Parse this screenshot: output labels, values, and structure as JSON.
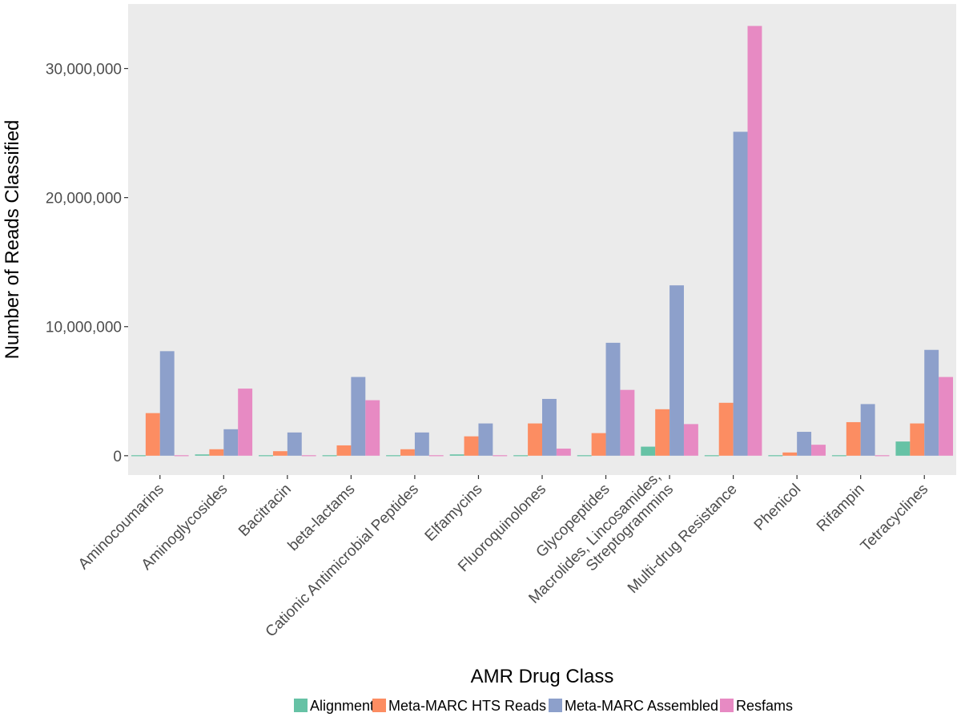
{
  "chart_data": {
    "type": "bar",
    "xlabel": "AMR Drug Class",
    "ylabel": "Number of Reads Classified",
    "ylim": [
      -1500000,
      35000000
    ],
    "yticks": [
      0,
      10000000,
      20000000,
      30000000
    ],
    "ytick_labels": [
      "0",
      "10,000,000",
      "20,000,000",
      "30,000,000"
    ],
    "categories": [
      [
        "Aminocoumarins"
      ],
      [
        "Aminoglycosides"
      ],
      [
        "Bacitracin"
      ],
      [
        "beta-lactams"
      ],
      [
        "Cationic Antimicrobial Peptides"
      ],
      [
        "Elfamycins"
      ],
      [
        "Fluoroquinolones"
      ],
      [
        "Glycopeptides"
      ],
      [
        "Macrolides, Lincosamides,",
        "Streptogrammins"
      ],
      [
        "Multi-drug Resistance"
      ],
      [
        "Phenicol"
      ],
      [
        "Rifampin"
      ],
      [
        "Tetracyclines"
      ]
    ],
    "series": [
      {
        "name": "Alignment",
        "color": "#66c2a5",
        "values": [
          20000,
          100000,
          0,
          20000,
          20000,
          100000,
          20000,
          0,
          700000,
          20000,
          20000,
          20000,
          1100000
        ]
      },
      {
        "name": "Meta-MARC HTS Reads",
        "color": "#fc8d62",
        "values": [
          3300000,
          500000,
          350000,
          800000,
          500000,
          1500000,
          2500000,
          1750000,
          3600000,
          4100000,
          250000,
          2600000,
          2500000
        ]
      },
      {
        "name": "Meta-MARC Assembled",
        "color": "#8da0cb",
        "values": [
          8100000,
          2050000,
          1800000,
          6100000,
          1800000,
          2500000,
          4400000,
          8750000,
          13200000,
          25100000,
          1850000,
          4000000,
          8200000
        ]
      },
      {
        "name": "Resfams",
        "color": "#e78ac3",
        "values": [
          0,
          5200000,
          0,
          4300000,
          0,
          0,
          550000,
          5100000,
          2450000,
          33300000,
          850000,
          0,
          6100000
        ]
      }
    ],
    "grid": false,
    "legend_position": "bottom",
    "panel_background": "#ebebeb"
  }
}
